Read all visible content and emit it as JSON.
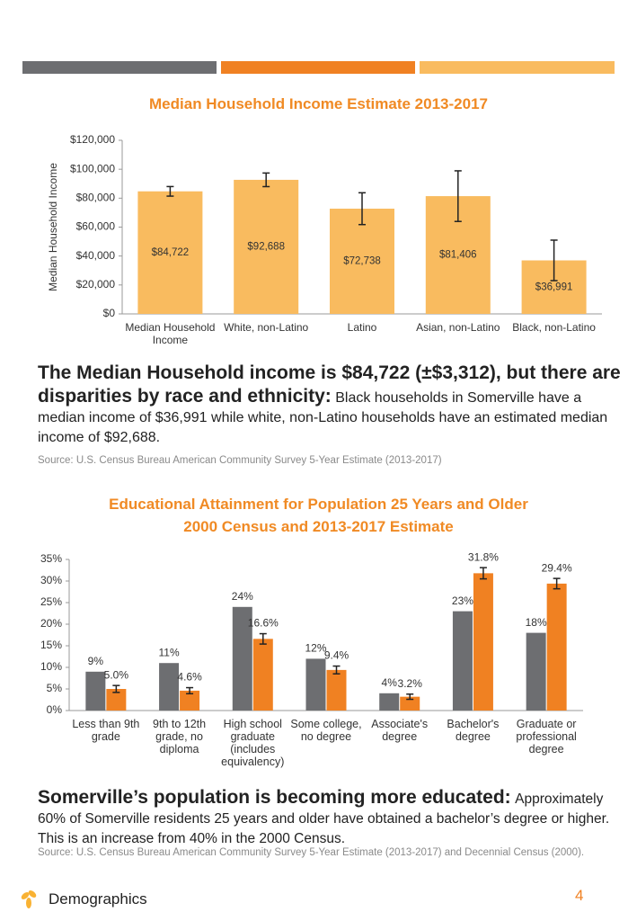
{
  "chart_data": [
    {
      "type": "bar",
      "title": "Median Household Income Estimate 2013-2017",
      "y_label": "Median Household Income",
      "categories": [
        "Median Household Income",
        "White, non-Latino",
        "Latino",
        "Asian, non-Latino",
        "Black, non-Latino"
      ],
      "values": [
        84722,
        92688,
        72738,
        81406,
        36991
      ],
      "value_labels": [
        "$84,722",
        "$92,688",
        "$72,738",
        "$81,406",
        "$36,991"
      ],
      "errors": [
        3312,
        4700,
        11000,
        17500,
        14000
      ],
      "color": "#f9bb5f",
      "ylim": [
        0,
        120000
      ],
      "yticks": [
        {
          "value": 0,
          "label": "$0"
        },
        {
          "value": 20000,
          "label": "$20,000"
        },
        {
          "value": 40000,
          "label": "$40,000"
        },
        {
          "value": 60000,
          "label": "$60,000"
        },
        {
          "value": 80000,
          "label": "$80,000"
        },
        {
          "value": 100000,
          "label": "$100,000"
        },
        {
          "value": 120000,
          "label": "$120,000"
        }
      ]
    },
    {
      "type": "bar",
      "title": "Educational Attainment for Population 25 Years and Older",
      "subtitle": "2000 Census and 2013-2017 Estimate",
      "categories": [
        "Less than 9th grade",
        "9th to 12th grade, no diploma",
        "High school graduate (includes equivalency)",
        "Some college, no degree",
        "Associate's degree",
        "Bachelor's degree",
        "Graduate or professional degree"
      ],
      "series": [
        {
          "color": "#6d6e71",
          "values": [
            9,
            11,
            24,
            12,
            4,
            23,
            18
          ],
          "value_labels": [
            "9%",
            "11%",
            "24%",
            "12%",
            "4%",
            "23%",
            "18%"
          ]
        },
        {
          "color": "#f08122",
          "values": [
            5.0,
            4.6,
            16.6,
            9.4,
            3.2,
            31.8,
            29.4
          ],
          "value_labels": [
            "5.0%",
            "4.6%",
            "16.6%",
            "9.4%",
            "3.2%",
            "31.8%",
            "29.4%"
          ],
          "errors": [
            0.8,
            0.7,
            1.2,
            0.9,
            0.6,
            1.3,
            1.2
          ]
        }
      ],
      "ylim": [
        0,
        35
      ],
      "yticks": [
        {
          "value": 0,
          "label": "0%"
        },
        {
          "value": 5,
          "label": "5%"
        },
        {
          "value": 10,
          "label": "10%"
        },
        {
          "value": 15,
          "label": "15%"
        },
        {
          "value": 20,
          "label": "20%"
        },
        {
          "value": 25,
          "label": "25%"
        },
        {
          "value": 30,
          "label": "30%"
        },
        {
          "value": 35,
          "label": "35%"
        }
      ]
    }
  ],
  "text_blocks": [
    {
      "lead": "The Median Household income is $84,722 (±$3,312), but there are disparities by race and ethnicity:",
      "body": "Black households in Somerville have a median income of $36,991 while white, non-Latino households have an estimated median income of $92,688.",
      "source": "Source: U.S. Census Bureau American Community Survey 5-Year Estimate (2013-2017)"
    },
    {
      "lead": "Somerville’s population is becoming more educated:",
      "body": "Approximately 60% of Somerville residents 25 years and older have obtained a bachelor’s degree or higher. This is an increase from 40% in the 2000 Census.",
      "source": "Source: U.S. Census Bureau American Community Survey 5-Year Estimate (2013-2017) and Decennial Census (2000)."
    }
  ],
  "footer": {
    "section": "Demographics",
    "page": "4"
  }
}
